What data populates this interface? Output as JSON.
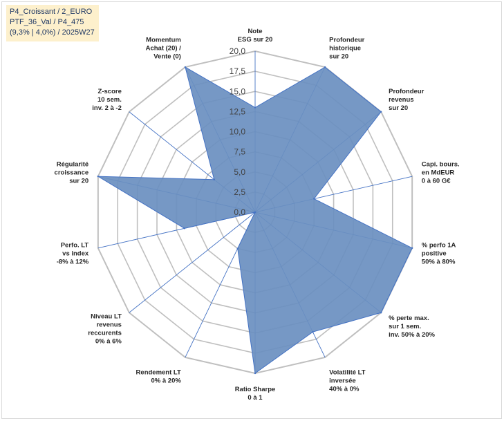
{
  "info": {
    "line1": "P4_Croissant / 2_EURO",
    "line2": "PTF_36_Val / P4_475",
    "line3": "(9,3% | 4,0%) / 2025W27"
  },
  "chart_data": {
    "type": "radar",
    "rmin": 0,
    "rmax": 20,
    "ticks": [
      "0,0",
      "2,5",
      "5,0",
      "7,5",
      "10,0",
      "12,5",
      "15,0",
      "17,5",
      "20,0"
    ],
    "categories": [
      [
        "Note",
        "ESG sur 20"
      ],
      [
        "Profondeur",
        "historique",
        "sur 20"
      ],
      [
        "Profondeur",
        "revenus",
        "sur 20"
      ],
      [
        "Capi. bours.",
        "en MdEUR",
        "0 à 60 G€"
      ],
      [
        "% perfo 1A",
        "positive",
        "50% à 80%"
      ],
      [
        "% perte max.",
        "sur 1 sem.",
        "inv. 50% à 20%"
      ],
      [
        "Volatilité LT",
        "inversée",
        "40% à 0%"
      ],
      [
        "Ratio Sharpe",
        "0 à 1"
      ],
      [
        "Rendement LT",
        "0% à 20%"
      ],
      [
        "Niveau LT",
        "revenus",
        "reccurents",
        "0% à 6%"
      ],
      [
        "Perfo. LT",
        "vs index",
        "-8% à 12%"
      ],
      [
        "Régularité",
        "croissance",
        "sur 20"
      ],
      [
        "Z-score",
        "10 sem.",
        "inv. 2 à -2"
      ],
      [
        "Momentum",
        "Achat (20) /",
        "Vente (0)"
      ]
    ],
    "values": [
      13,
      20,
      20,
      7.5,
      20,
      20,
      16.5,
      20,
      5,
      0,
      9,
      20,
      6.5,
      20
    ],
    "colors": {
      "fill": "#6a8fc0",
      "stroke": "#4472c4",
      "grid": "#bfbfbf",
      "spoke": "#4472c4"
    }
  }
}
